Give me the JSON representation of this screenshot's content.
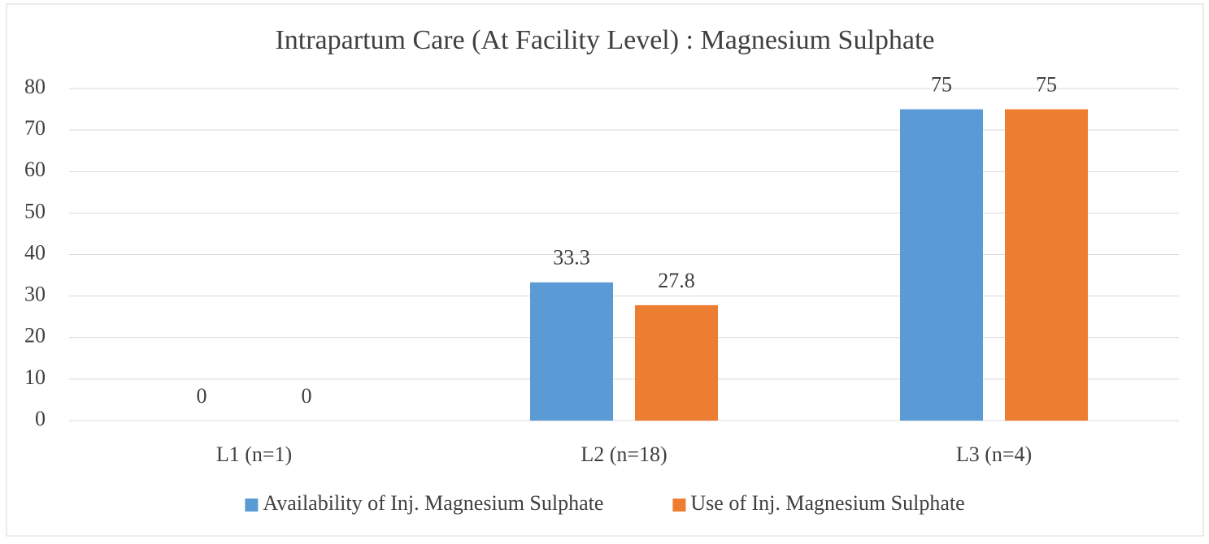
{
  "chart_data": {
    "type": "bar",
    "title": "Intrapartum Care (At Facility Level) : Magnesium Sulphate",
    "categories": [
      "L1 (n=1)",
      "L2 (n=18)",
      "L3 (n=4)"
    ],
    "series": [
      {
        "name": "Availability of Inj. Magnesium Sulphate",
        "color": "#5b9bd5",
        "values": [
          0,
          33.3,
          75
        ]
      },
      {
        "name": "Use of Inj. Magnesium Sulphate",
        "color": "#ed7d31",
        "values": [
          0,
          27.8,
          75
        ]
      }
    ],
    "ylim": [
      0,
      80
    ],
    "yticks": [
      0,
      10,
      20,
      30,
      40,
      50,
      60,
      70,
      80
    ],
    "grid": true,
    "legend": "bottom"
  }
}
